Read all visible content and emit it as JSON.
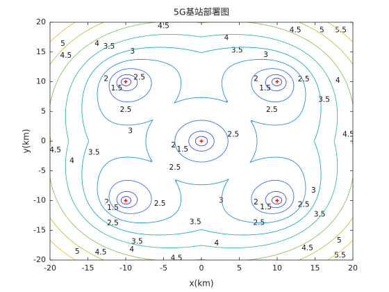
{
  "chart_data": {
    "type": "contour",
    "title": "5G基站部署图",
    "xlabel": "x(km)",
    "ylabel": "y(km)",
    "xlim": [
      -20,
      20
    ],
    "ylim": [
      -20,
      20
    ],
    "xticks": [
      -20,
      -15,
      -10,
      -5,
      0,
      5,
      10,
      15,
      20
    ],
    "yticks": [
      -20,
      -15,
      -10,
      -5,
      0,
      5,
      10,
      15,
      20
    ],
    "levels": [
      1.5,
      2,
      2.5,
      3,
      3.5,
      4,
      4.5,
      5,
      5.5
    ],
    "colors": [
      "#4a34c9",
      "#3c55e4",
      "#2f74ec",
      "#1f92dc",
      "#15aec2",
      "#30bd9c",
      "#86c45c",
      "#c8bd35",
      "#e9c423"
    ],
    "stations": {
      "x": [
        0,
        10,
        -10,
        10,
        -10
      ],
      "y": [
        0,
        10,
        10,
        -10,
        -10
      ],
      "color": "#ff0000"
    }
  }
}
